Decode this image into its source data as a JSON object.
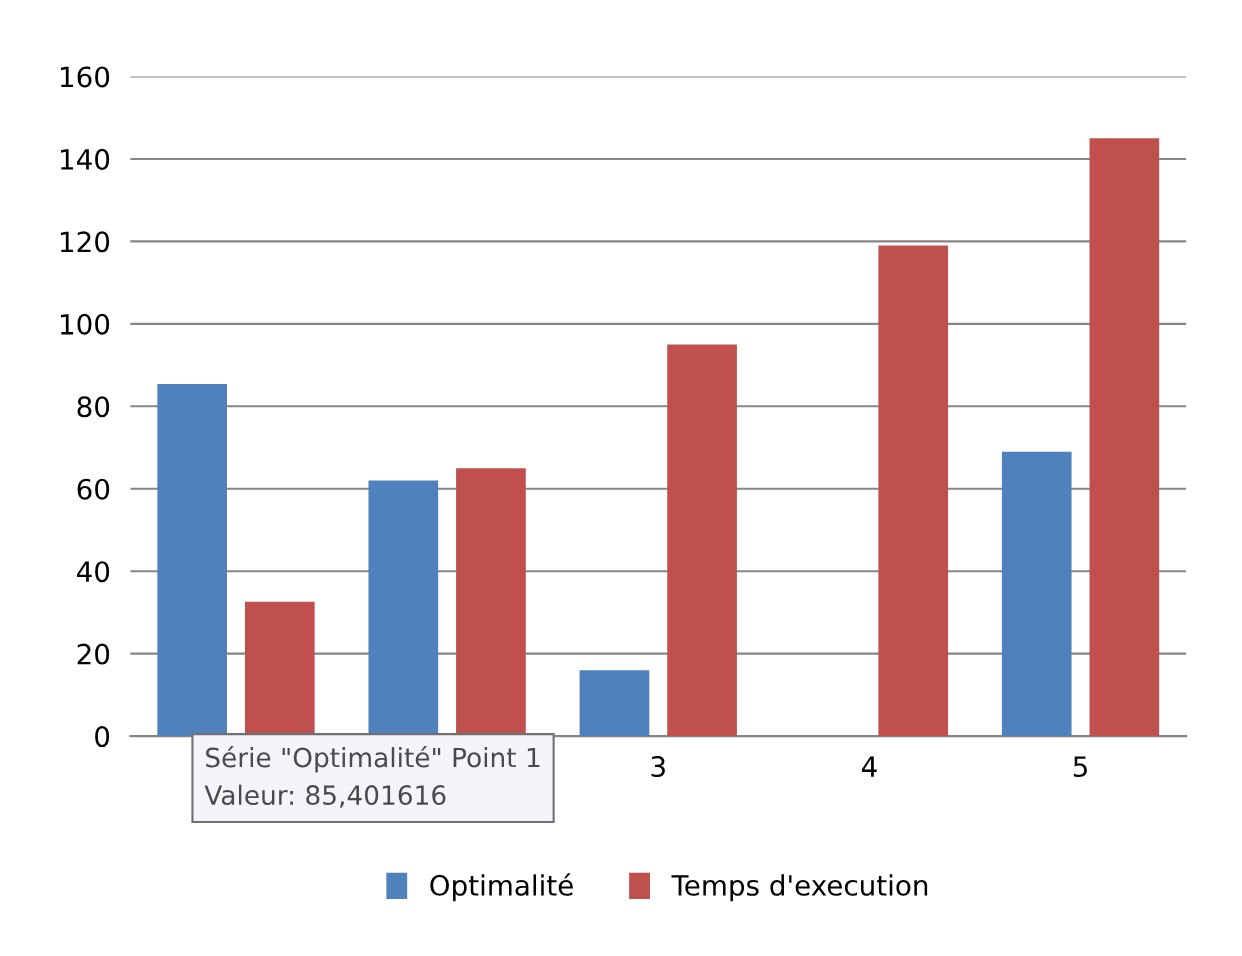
{
  "chart_data": {
    "type": "bar",
    "categories": [
      null,
      null,
      "3",
      "4",
      "5"
    ],
    "series": [
      {
        "name": "Optimalité",
        "color": "#4f81bd",
        "values": [
          85.4,
          62,
          16,
          0,
          69
        ]
      },
      {
        "name": "Temps d'execution",
        "color": "#c0504d",
        "values": [
          32.6,
          65,
          95,
          119,
          145
        ]
      }
    ],
    "ylim": [
      0,
      160
    ],
    "yticks": [
      0,
      20,
      40,
      60,
      80,
      100,
      120,
      140,
      160
    ],
    "grid": "y",
    "legend": "bottom",
    "annotations": [
      "Série \"Optimalité\" Point 1\nValeur: 85,401616"
    ]
  }
}
